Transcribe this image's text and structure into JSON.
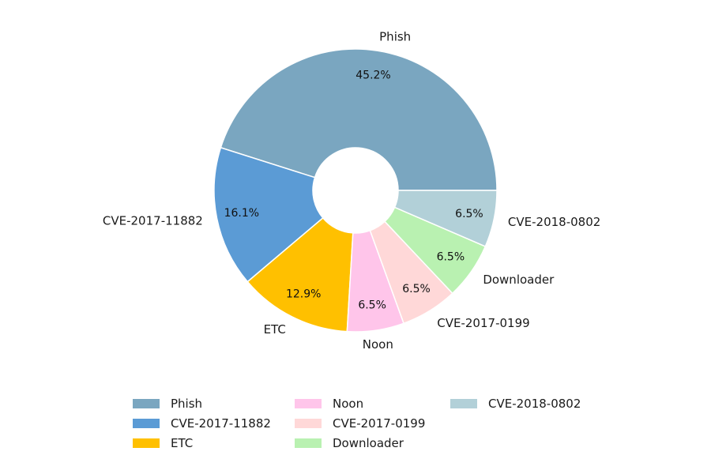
{
  "chart_data": {
    "type": "pie",
    "style": "donut",
    "legend_position": "bottom",
    "start_angle_deg": 0,
    "direction": "counterclockwise",
    "slices": [
      {
        "label": "Phish",
        "value": 45.2,
        "pct_label": "45.2%",
        "color": "#7aa6c0"
      },
      {
        "label": "CVE-2017-11882",
        "value": 16.1,
        "pct_label": "16.1%",
        "color": "#5b9bd5"
      },
      {
        "label": "ETC",
        "value": 12.9,
        "pct_label": "12.9%",
        "color": "#ffc000"
      },
      {
        "label": "Noon",
        "value": 6.5,
        "pct_label": "6.5%",
        "color": "#ffc5ea"
      },
      {
        "label": "CVE-2017-0199",
        "value": 6.5,
        "pct_label": "6.5%",
        "color": "#ffd8d8"
      },
      {
        "label": "Downloader",
        "value": 6.5,
        "pct_label": "6.5%",
        "color": "#b9f1b1"
      },
      {
        "label": "CVE-2018-0802",
        "value": 6.5,
        "pct_label": "6.5%",
        "color": "#b2d0d8"
      }
    ]
  }
}
